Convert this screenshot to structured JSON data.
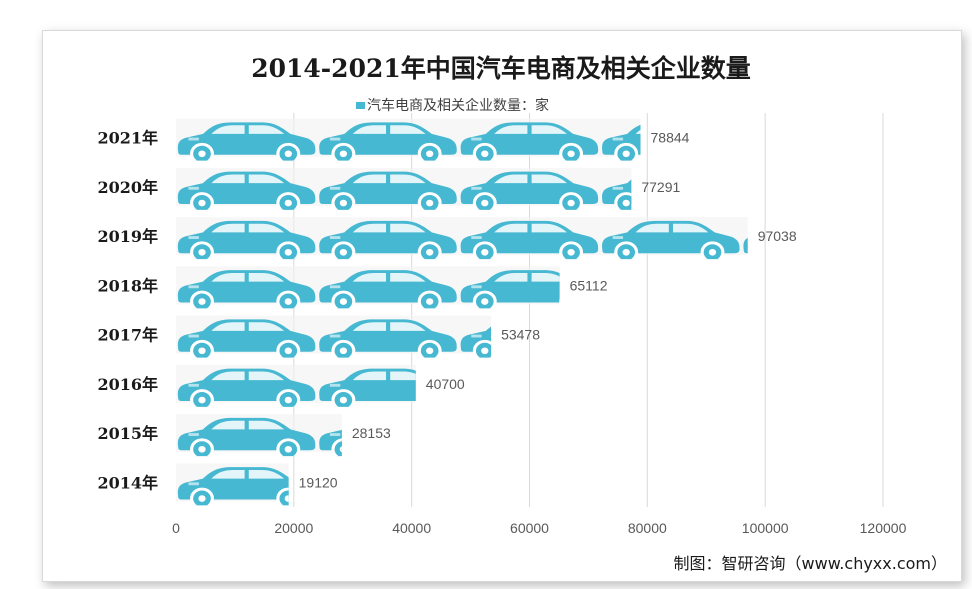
{
  "chart_data": {
    "type": "bar",
    "orientation": "horizontal",
    "title": "2014-2021年中国汽车电商及相关企业数量",
    "legend": {
      "label": "汽车电商及相关企业数量：家",
      "position": "top",
      "color": "#47b8d1"
    },
    "categories": [
      "2014年",
      "2015年",
      "2016年",
      "2017年",
      "2018年",
      "2019年",
      "2020年",
      "2021年"
    ],
    "values": [
      19120,
      28153,
      40700,
      53478,
      65112,
      97038,
      77291,
      78844
    ],
    "value_labels": [
      "19120",
      "28153",
      "40700",
      "53478",
      "65112",
      "97038",
      "77291",
      "78844"
    ],
    "xlim": [
      0,
      120000
    ],
    "xticks": [
      0,
      20000,
      40000,
      60000,
      80000,
      100000,
      120000
    ],
    "xtick_labels": [
      "0",
      "20000",
      "40000",
      "60000",
      "80000",
      "100000",
      "120000"
    ],
    "unit_per_icon": 24000,
    "grid": true
  },
  "credit": "制图：智研咨询（www.chyxx.com）",
  "watermark": "智研咨询 www.chyxx.com",
  "colors": {
    "bar": "#47b8d1",
    "wheel": "#ffffff",
    "grid": "#d9d9d9",
    "text": "#404040",
    "title": "#1a1a1a"
  }
}
